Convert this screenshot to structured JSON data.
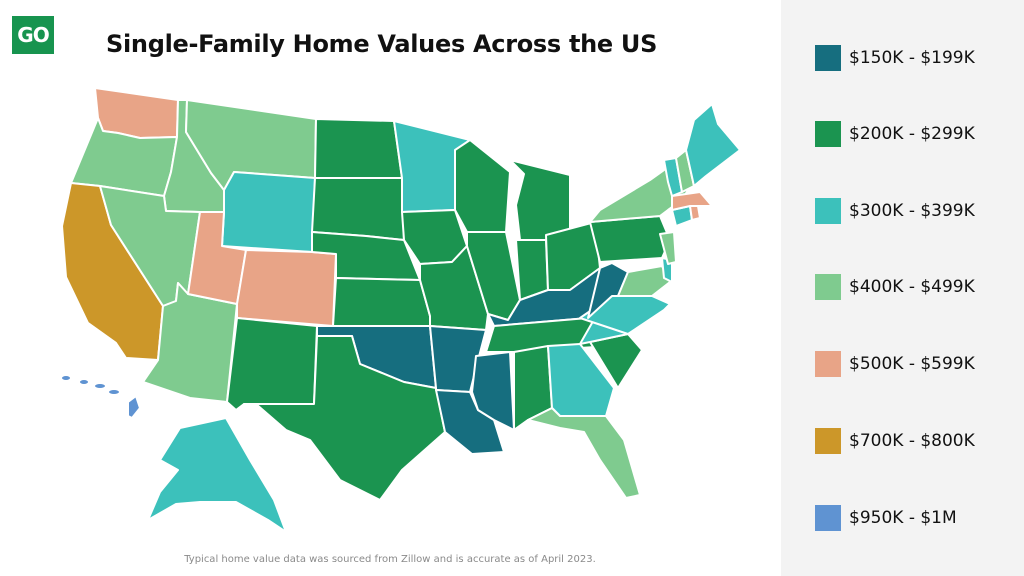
{
  "logo": {
    "text": "GO"
  },
  "title": "Single-Family Home Values Across the US",
  "footnote": "Typical home value data was sourced from Zillow and is accurate as of April 2023.",
  "legend": [
    {
      "label": "$150K - $199K",
      "color": "#166e7f"
    },
    {
      "label": "$200K - $299K",
      "color": "#1b9450"
    },
    {
      "label": "$300K - $399K",
      "color": "#3cc1bb"
    },
    {
      "label": "$400K - $499K",
      "color": "#7fcb8f"
    },
    {
      "label": "$500K - $599K",
      "color": "#e8a487"
    },
    {
      "label": "$700K - $800K",
      "color": "#cc9729"
    },
    {
      "label": "$950K - $1M",
      "color": "#5f93d2"
    }
  ],
  "states": [
    {
      "abbr": "WA",
      "tier": 4
    },
    {
      "abbr": "OR",
      "tier": 3
    },
    {
      "abbr": "CA",
      "tier": 5
    },
    {
      "abbr": "ID",
      "tier": 3
    },
    {
      "abbr": "NV",
      "tier": 3
    },
    {
      "abbr": "AZ",
      "tier": 3
    },
    {
      "abbr": "MT",
      "tier": 3
    },
    {
      "abbr": "WY",
      "tier": 2
    },
    {
      "abbr": "UT",
      "tier": 4
    },
    {
      "abbr": "CO",
      "tier": 4
    },
    {
      "abbr": "NM",
      "tier": 1
    },
    {
      "abbr": "ND",
      "tier": 1
    },
    {
      "abbr": "SD",
      "tier": 1
    },
    {
      "abbr": "NE",
      "tier": 1
    },
    {
      "abbr": "KS",
      "tier": 1
    },
    {
      "abbr": "OK",
      "tier": 0
    },
    {
      "abbr": "TX",
      "tier": 1
    },
    {
      "abbr": "MN",
      "tier": 2
    },
    {
      "abbr": "IA",
      "tier": 1
    },
    {
      "abbr": "MO",
      "tier": 1
    },
    {
      "abbr": "AR",
      "tier": 0
    },
    {
      "abbr": "LA",
      "tier": 0
    },
    {
      "abbr": "WI",
      "tier": 1
    },
    {
      "abbr": "IL",
      "tier": 1
    },
    {
      "abbr": "MI",
      "tier": 1
    },
    {
      "abbr": "IN",
      "tier": 1
    },
    {
      "abbr": "OH",
      "tier": 1
    },
    {
      "abbr": "KY",
      "tier": 0
    },
    {
      "abbr": "TN",
      "tier": 1
    },
    {
      "abbr": "MS",
      "tier": 0
    },
    {
      "abbr": "AL",
      "tier": 1
    },
    {
      "abbr": "GA",
      "tier": 2
    },
    {
      "abbr": "FL",
      "tier": 3
    },
    {
      "abbr": "SC",
      "tier": 1
    },
    {
      "abbr": "NC",
      "tier": 2
    },
    {
      "abbr": "VA",
      "tier": 2
    },
    {
      "abbr": "WV",
      "tier": 0
    },
    {
      "abbr": "PA",
      "tier": 1
    },
    {
      "abbr": "NY",
      "tier": 3
    },
    {
      "abbr": "MD",
      "tier": 3
    },
    {
      "abbr": "DE",
      "tier": 2
    },
    {
      "abbr": "NJ",
      "tier": 3
    },
    {
      "abbr": "CT",
      "tier": 2
    },
    {
      "abbr": "RI",
      "tier": 4
    },
    {
      "abbr": "MA",
      "tier": 4
    },
    {
      "abbr": "VT",
      "tier": 2
    },
    {
      "abbr": "NH",
      "tier": 3
    },
    {
      "abbr": "ME",
      "tier": 2
    },
    {
      "abbr": "AK",
      "tier": 2
    },
    {
      "abbr": "HI",
      "tier": 6
    }
  ]
}
